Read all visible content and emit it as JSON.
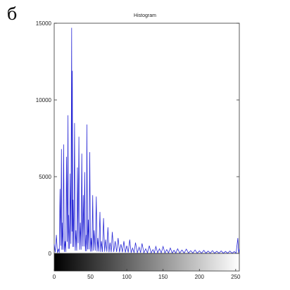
{
  "panel_label": "б",
  "chart_data": {
    "type": "line",
    "title": "Histogram",
    "xlabel": "",
    "ylabel": "",
    "xlim": [
      0,
      255
    ],
    "ylim": [
      0,
      15000
    ],
    "x_ticks": [
      "0",
      "50",
      "100",
      "150",
      "200",
      "250"
    ],
    "y_ticks": [
      "0",
      "5000",
      "10000",
      "15000"
    ],
    "grid": false,
    "colorbar": "grayscale gradient 0 to 255 below the plot",
    "series": [
      {
        "color": "#2a2ad6",
        "peaks": [
          [
            0,
            600
          ],
          [
            3,
            1200
          ],
          [
            6,
            300
          ],
          [
            8,
            4200
          ],
          [
            10,
            6800
          ],
          [
            11,
            2000
          ],
          [
            13,
            7100
          ],
          [
            15,
            800
          ],
          [
            17,
            6300
          ],
          [
            19,
            9000
          ],
          [
            20,
            2500
          ],
          [
            22,
            5200
          ],
          [
            24,
            14700
          ],
          [
            25,
            11900
          ],
          [
            26,
            3500
          ],
          [
            28,
            8500
          ],
          [
            30,
            1500
          ],
          [
            32,
            5600
          ],
          [
            34,
            7600
          ],
          [
            36,
            2000
          ],
          [
            38,
            6500
          ],
          [
            40,
            3800
          ],
          [
            42,
            5300
          ],
          [
            44,
            1200
          ],
          [
            45,
            8400
          ],
          [
            47,
            2200
          ],
          [
            49,
            6600
          ],
          [
            51,
            1000
          ],
          [
            53,
            3800
          ],
          [
            55,
            1500
          ],
          [
            58,
            3700
          ],
          [
            60,
            1000
          ],
          [
            63,
            2700
          ],
          [
            65,
            800
          ],
          [
            68,
            2300
          ],
          [
            71,
            900
          ],
          [
            74,
            1700
          ],
          [
            77,
            700
          ],
          [
            80,
            1400
          ],
          [
            84,
            800
          ],
          [
            88,
            1000
          ],
          [
            92,
            600
          ],
          [
            96,
            800
          ],
          [
            100,
            500
          ],
          [
            104,
            900
          ],
          [
            108,
            350
          ],
          [
            112,
            700
          ],
          [
            117,
            400
          ],
          [
            121,
            650
          ],
          [
            126,
            300
          ],
          [
            131,
            500
          ],
          [
            136,
            250
          ],
          [
            140,
            450
          ],
          [
            145,
            300
          ],
          [
            150,
            450
          ],
          [
            155,
            250
          ],
          [
            160,
            350
          ],
          [
            165,
            200
          ],
          [
            170,
            300
          ],
          [
            176,
            220
          ],
          [
            182,
            280
          ],
          [
            188,
            180
          ],
          [
            194,
            220
          ],
          [
            200,
            160
          ],
          [
            206,
            200
          ],
          [
            212,
            150
          ],
          [
            218,
            180
          ],
          [
            224,
            140
          ],
          [
            230,
            160
          ],
          [
            236,
            130
          ],
          [
            242,
            150
          ],
          [
            248,
            120
          ],
          [
            253,
            1000
          ],
          [
            255,
            300
          ]
        ]
      }
    ]
  }
}
